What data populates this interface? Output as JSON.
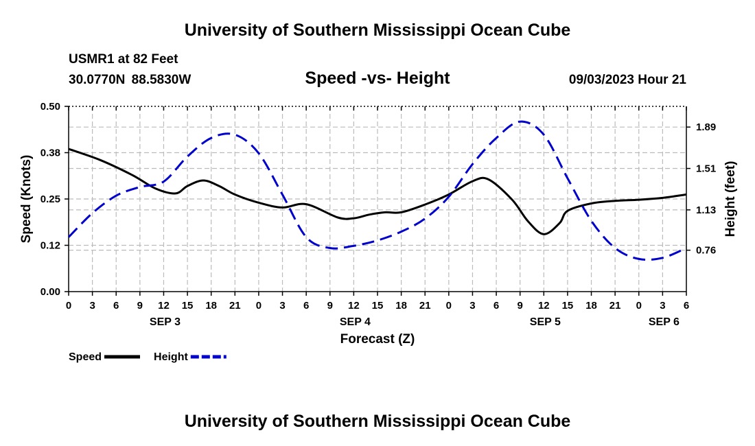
{
  "header": {
    "title": "University of Southern Mississippi Ocean Cube",
    "station": "USMR1 at 82 Feet",
    "coords": "30.0770N  88.5830W",
    "datetime": "09/03/2023 Hour 21"
  },
  "footer": {
    "title": "University of Southern Mississippi Ocean Cube"
  },
  "chart_data": {
    "type": "line",
    "title": "Speed -vs- Height",
    "xlabel": "Forecast (Z)",
    "ylabel": "Speed (Knots)",
    "y2label": "Height (feet)",
    "xlim": [
      0,
      78
    ],
    "ylim": [
      0,
      0.5
    ],
    "y2lim": [
      0.38,
      2.08
    ],
    "x_ticks": [
      0,
      3,
      6,
      9,
      12,
      15,
      18,
      21,
      24,
      27,
      30,
      33,
      36,
      39,
      42,
      45,
      48,
      51,
      54,
      57,
      60,
      63,
      66,
      69,
      72,
      75,
      78
    ],
    "x_tick_labels": [
      "0",
      "3",
      "6",
      "9",
      "12",
      "15",
      "18",
      "21",
      "0",
      "3",
      "6",
      "9",
      "12",
      "15",
      "18",
      "21",
      "0",
      "3",
      "6",
      "9",
      "12",
      "15",
      "18",
      "21",
      "0",
      "3",
      "6"
    ],
    "date_labels": [
      {
        "x": 12,
        "label": "SEP 3"
      },
      {
        "x": 36,
        "label": "SEP 4"
      },
      {
        "x": 60,
        "label": "SEP 5"
      },
      {
        "x": 75,
        "label": "SEP 6"
      }
    ],
    "y_ticks": [
      0,
      0.125,
      0.25,
      0.375,
      0.5
    ],
    "y_tick_labels": [
      "0.00",
      "0.12",
      "0.25",
      "0.38",
      "0.50"
    ],
    "y2_ticks": [
      0.76,
      1.13,
      1.51,
      1.89
    ],
    "y2_tick_labels": [
      "0.76",
      "1.13",
      "1.51",
      "1.89"
    ],
    "legend": [
      {
        "name": "Speed",
        "color": "#000000",
        "dash": "solid"
      },
      {
        "name": "Height",
        "color": "#0000cc",
        "dash": "dashed"
      }
    ],
    "series": [
      {
        "name": "Speed",
        "axis": "left",
        "color": "#000000",
        "x": [
          0,
          4,
          8,
          11,
          13.5,
          15,
          17,
          19,
          21,
          24,
          27,
          30,
          34,
          36,
          38,
          40,
          42,
          45,
          48,
          51,
          53,
          56,
          58,
          60,
          62,
          63,
          66,
          69,
          72,
          75,
          78
        ],
        "y": [
          0.385,
          0.355,
          0.315,
          0.278,
          0.265,
          0.285,
          0.3,
          0.285,
          0.262,
          0.24,
          0.227,
          0.236,
          0.2,
          0.198,
          0.208,
          0.214,
          0.214,
          0.235,
          0.262,
          0.298,
          0.303,
          0.248,
          0.19,
          0.155,
          0.185,
          0.218,
          0.238,
          0.245,
          0.248,
          0.253,
          0.262
        ]
      },
      {
        "name": "Height",
        "axis": "right",
        "color": "#0000cc",
        "x": [
          0,
          3,
          6,
          9,
          12,
          15,
          18,
          21,
          24,
          27,
          30,
          33,
          36,
          39,
          42,
          45,
          48,
          51,
          54,
          57,
          60,
          63,
          66,
          69,
          72,
          75,
          78
        ],
        "y": [
          0.88,
          1.1,
          1.26,
          1.34,
          1.39,
          1.62,
          1.79,
          1.82,
          1.65,
          1.27,
          0.88,
          0.78,
          0.8,
          0.85,
          0.93,
          1.05,
          1.25,
          1.55,
          1.79,
          1.94,
          1.82,
          1.42,
          1.03,
          0.78,
          0.68,
          0.69,
          0.78
        ]
      }
    ]
  }
}
